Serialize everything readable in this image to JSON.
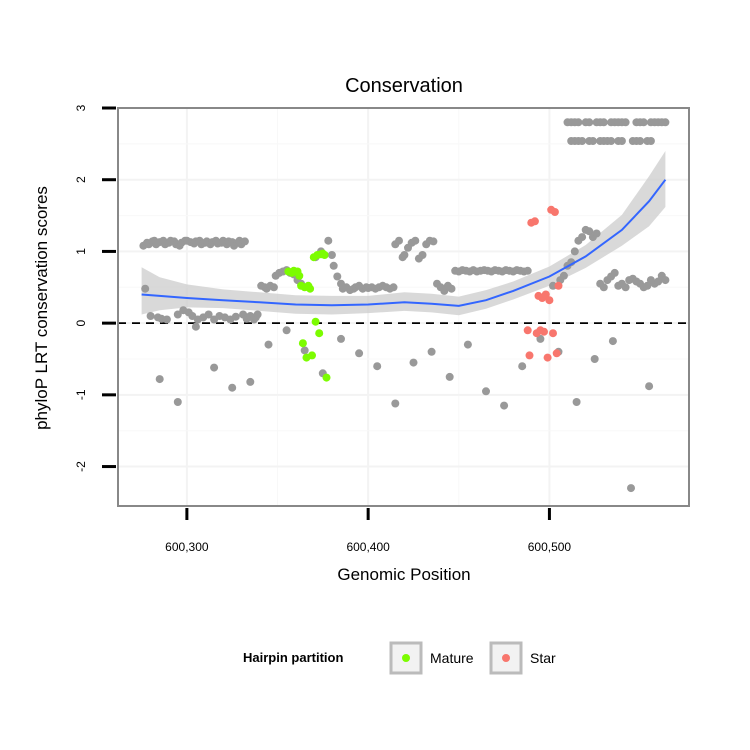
{
  "chart_data": {
    "type": "scatter",
    "title": "Conservation",
    "xlabel": "Genomic Position",
    "ylabel": "phyloP LRT conservation scores",
    "xlim": [
      600262,
      600577
    ],
    "ylim": [
      -2.55,
      3.0
    ],
    "x_ticks": [
      600300,
      600400,
      600500
    ],
    "x_tick_labels": [
      "600,300",
      "600,400",
      "600,500"
    ],
    "y_ticks": [
      -2,
      -1,
      0,
      1,
      2,
      3
    ],
    "y_tick_labels": [
      "-2",
      "-1",
      "0",
      "1",
      "2",
      "3"
    ],
    "grid": true,
    "reference_line": {
      "y": 0,
      "style": "dashed"
    },
    "legend": {
      "title": "Hairpin partition",
      "placement": "bottom",
      "entries": [
        {
          "label": "Mature",
          "color": "#7CFC00"
        },
        {
          "label": "Star",
          "color": "#F8766D"
        }
      ]
    },
    "colors": {
      "other": "#999999",
      "smooth_line": "#3366FF",
      "smooth_band": "#CCCCCC",
      "panel_border": "#888888"
    },
    "smooth": {
      "x": [
        600275,
        600285,
        600300,
        600320,
        600340,
        600360,
        600380,
        600400,
        600420,
        600435,
        600450,
        600465,
        600480,
        600500,
        600520,
        600540,
        600555,
        600564
      ],
      "y": [
        0.4,
        0.38,
        0.35,
        0.32,
        0.29,
        0.26,
        0.25,
        0.26,
        0.29,
        0.27,
        0.24,
        0.32,
        0.45,
        0.65,
        0.93,
        1.3,
        1.7,
        2.0
      ],
      "lower": [
        0.12,
        0.18,
        0.22,
        0.21,
        0.17,
        0.13,
        0.12,
        0.14,
        0.17,
        0.15,
        0.11,
        0.2,
        0.33,
        0.52,
        0.77,
        1.08,
        1.35,
        1.62
      ],
      "upper": [
        0.78,
        0.64,
        0.54,
        0.47,
        0.43,
        0.39,
        0.38,
        0.38,
        0.43,
        0.41,
        0.37,
        0.46,
        0.58,
        0.79,
        1.09,
        1.51,
        2.05,
        2.4
      ]
    },
    "series": [
      {
        "name": "other",
        "x": [
          600276,
          600278,
          600279,
          600281,
          600282,
          600283,
          600285,
          600287,
          600288,
          600290,
          600291,
          600293,
          600294,
          600296,
          600297,
          600299,
          600300,
          600302,
          600304,
          600305,
          600307,
          600308,
          600310,
          600311,
          600313,
          600314,
          600316,
          600317,
          600319,
          600320,
          600322,
          600323,
          600325,
          600326,
          600328,
          600329,
          600330,
          600332,
          600277,
          600280,
          600284,
          600286,
          600289,
          600295,
          600298,
          600301,
          600303,
          600306,
          600309,
          600312,
          600315,
          600318,
          600321,
          600324,
          600327,
          600331,
          600333,
          600335,
          600337,
          600338,
          600339,
          600341,
          600343,
          600344,
          600346,
          600348,
          600349,
          600351,
          600353,
          600355,
          600357,
          600359,
          600361,
          600363,
          600371,
          600374,
          600378,
          600380,
          600381,
          600383,
          600385,
          600386,
          600388,
          600390,
          600392,
          600393,
          600395,
          600397,
          600399,
          600400,
          600402,
          600404,
          600406,
          600408,
          600410,
          600412,
          600414,
          600415,
          600417,
          600419,
          600420,
          600422,
          600424,
          600426,
          600428,
          600430,
          600432,
          600434,
          600436,
          600438,
          600440,
          600442,
          600444,
          600446,
          600448,
          600450,
          600452,
          600454,
          600456,
          600458,
          600460,
          600462,
          600464,
          600466,
          600468,
          600470,
          600472,
          600474,
          600476,
          600478,
          600480,
          600482,
          600484,
          600486,
          600488,
          600502,
          600506,
          600508,
          600510,
          600512,
          600514,
          600516,
          600518,
          600520,
          600522,
          600524,
          600526,
          600528,
          600530,
          600532,
          600534,
          600536,
          600538,
          600540,
          600542,
          600544,
          600546,
          600548,
          600550,
          600552,
          600554,
          600556,
          600558,
          600560,
          600562,
          600564,
          600285,
          600295,
          600305,
          600315,
          600325,
          600335,
          600345,
          600355,
          600365,
          600375,
          600385,
          600395,
          600405,
          600415,
          600425,
          600435,
          600445,
          600455,
          600465,
          600475,
          600485,
          600495,
          600505,
          600515,
          600525,
          600535,
          600545,
          600555
        ],
        "y": [
          1.08,
          1.12,
          1.1,
          1.14,
          1.15,
          1.1,
          1.13,
          1.15,
          1.1,
          1.12,
          1.15,
          1.14,
          1.1,
          1.08,
          1.12,
          1.15,
          1.15,
          1.13,
          1.11,
          1.14,
          1.15,
          1.1,
          1.12,
          1.14,
          1.1,
          1.13,
          1.15,
          1.11,
          1.12,
          1.15,
          1.1,
          1.14,
          1.13,
          1.08,
          1.12,
          1.15,
          1.1,
          1.14,
          0.48,
          0.1,
          0.08,
          0.06,
          0.05,
          0.12,
          0.18,
          0.15,
          0.1,
          0.05,
          0.08,
          0.12,
          0.05,
          0.1,
          0.08,
          0.05,
          0.09,
          0.12,
          0.06,
          0.1,
          0.05,
          0.08,
          0.12,
          0.52,
          0.5,
          0.48,
          0.52,
          0.5,
          0.66,
          0.7,
          0.72,
          0.74,
          0.7,
          0.68,
          0.6,
          0.55,
          0.92,
          1.0,
          1.15,
          0.95,
          0.8,
          0.65,
          0.55,
          0.48,
          0.5,
          0.46,
          0.48,
          0.5,
          0.52,
          0.48,
          0.5,
          0.49,
          0.5,
          0.48,
          0.5,
          0.52,
          0.5,
          0.48,
          0.5,
          1.1,
          1.15,
          0.92,
          0.95,
          1.05,
          1.12,
          1.15,
          0.9,
          0.95,
          1.1,
          1.15,
          1.14,
          0.55,
          0.5,
          0.45,
          0.52,
          0.48,
          0.73,
          0.72,
          0.74,
          0.73,
          0.72,
          0.74,
          0.72,
          0.73,
          0.74,
          0.73,
          0.72,
          0.74,
          0.73,
          0.72,
          0.74,
          0.73,
          0.72,
          0.74,
          0.73,
          0.72,
          0.73,
          0.52,
          0.6,
          0.66,
          0.8,
          0.85,
          1.0,
          1.15,
          1.2,
          1.3,
          1.28,
          1.2,
          1.25,
          0.55,
          0.5,
          0.6,
          0.65,
          0.7,
          0.52,
          0.55,
          0.5,
          0.6,
          0.62,
          0.58,
          0.55,
          0.5,
          0.52,
          0.6,
          0.55,
          0.58,
          0.66,
          0.6,
          -0.78,
          -1.1,
          -0.05,
          -0.62,
          -0.9,
          -0.82,
          -0.3,
          -0.1,
          -0.38,
          -0.7,
          -0.22,
          -0.42,
          -0.6,
          -1.12,
          -0.55,
          -0.4,
          -0.75,
          -0.3,
          -0.95,
          -1.15,
          -0.6,
          -0.22,
          -0.4,
          -1.1,
          -0.5,
          -0.25,
          -2.3,
          -0.88
        ],
        "color": "#999999"
      },
      {
        "name": "Mature",
        "x": [
          600356,
          600358,
          600359,
          600361,
          600362,
          600363,
          600365,
          600367,
          600368,
          600370,
          600372,
          600374,
          600375,
          600376,
          600371,
          600373,
          600369,
          600366,
          600364,
          600377
        ],
        "y": [
          0.72,
          0.7,
          0.73,
          0.72,
          0.66,
          0.52,
          0.5,
          0.52,
          0.48,
          0.92,
          0.95,
          0.96,
          0.97,
          0.95,
          0.02,
          -0.14,
          -0.45,
          -0.48,
          -0.28,
          -0.76
        ],
        "color": "#7CFC00"
      },
      {
        "name": "Star",
        "x": [
          600490,
          600492,
          600494,
          600496,
          600498,
          600500,
          600501,
          600503,
          600505,
          600497,
          600493,
          600489,
          600495,
          600499,
          600502,
          600488,
          600504
        ],
        "y": [
          1.4,
          1.42,
          0.38,
          0.35,
          0.4,
          0.32,
          1.58,
          1.55,
          0.52,
          -0.12,
          -0.14,
          -0.45,
          -0.1,
          -0.48,
          -0.14,
          -0.1,
          -0.42
        ],
        "color": "#F8766D"
      }
    ]
  }
}
